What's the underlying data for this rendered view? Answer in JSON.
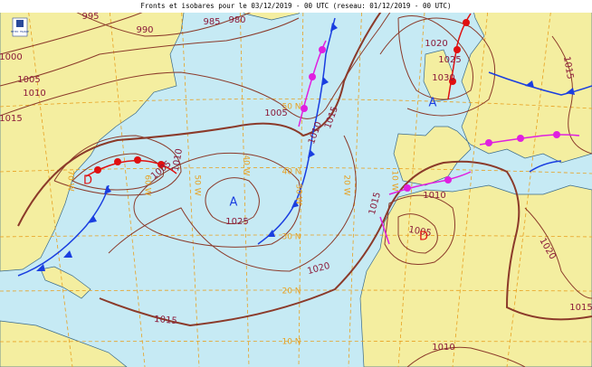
{
  "header": {
    "title": "Fronts et isobares pour le 03/12/2019 - 00 UTC (reseau: 01/12/2019 - 00 UTC)",
    "logo": "METEO FRANCE"
  },
  "isobar_labels": [
    "1000",
    "995",
    "990",
    "985",
    "980",
    "1005",
    "1010",
    "1015",
    "1005",
    "1010",
    "1005",
    "1010",
    "1015",
    "1025",
    "1020",
    "1015",
    "1020",
    "1025",
    "1030",
    "1015",
    "1015",
    "1010",
    "1005",
    "1020",
    "1015",
    "1010"
  ],
  "latitude_labels": [
    "50 N",
    "40 N",
    "30 N",
    "20 N",
    "10 N"
  ],
  "longitude_labels": [
    "70 W",
    "60 W",
    "50 W",
    "40 W",
    "30 W",
    "20 W",
    "10 W"
  ],
  "pressure_centers": [
    "A",
    "A",
    "D",
    "D"
  ]
}
